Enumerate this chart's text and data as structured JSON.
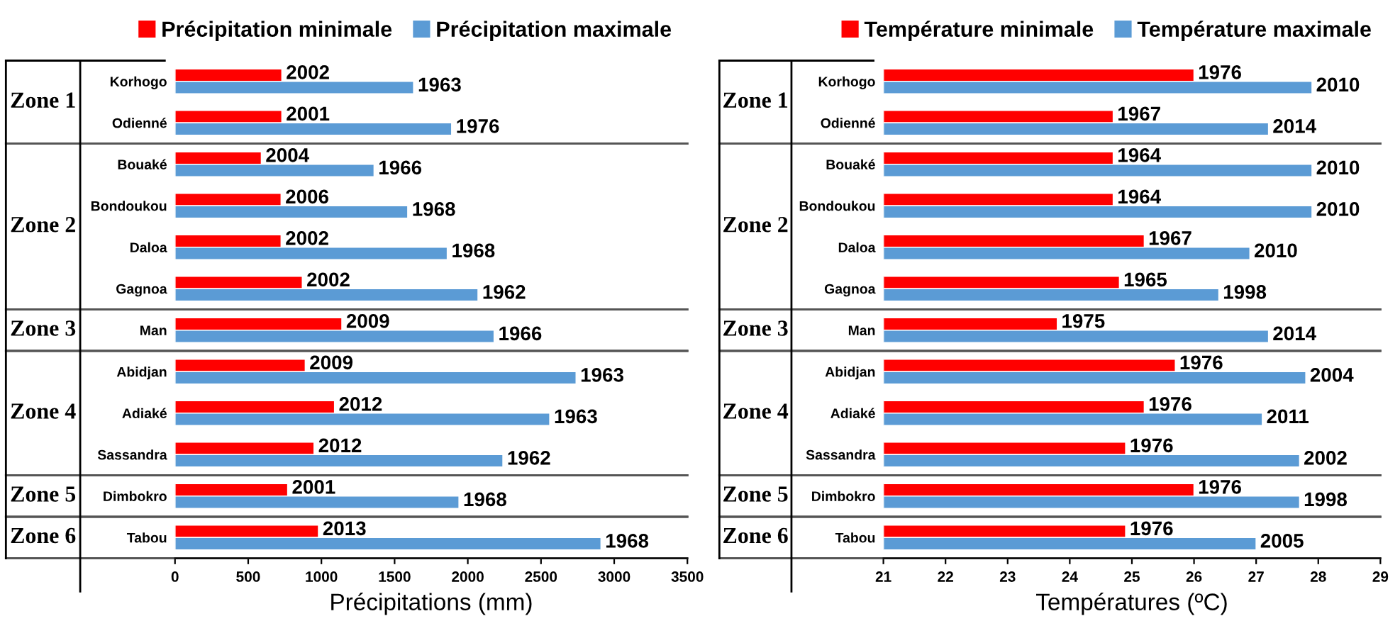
{
  "chart_data": [
    {
      "type": "bar",
      "orientation": "horizontal",
      "xlabel": "Précipitations (mm)",
      "categories": [
        "Korhogo",
        "Odienné",
        "Bouaké",
        "Bondoukou",
        "Daloa",
        "Gagnoa",
        "Man",
        "Abidjan",
        "Adiaké",
        "Sassandra",
        "Dimbokro",
        "Tabou"
      ],
      "series": [
        {
          "name": "Précipitation minimale",
          "color": "#ff0000",
          "values": [
            730,
            730,
            590,
            725,
            725,
            870,
            1140,
            890,
            1090,
            950,
            770,
            980
          ]
        },
        {
          "name": "Précipitation maximale",
          "color": "#5b9bd5",
          "values": [
            1630,
            1890,
            1360,
            1590,
            1860,
            2070,
            2180,
            2740,
            2560,
            2240,
            1940,
            2910
          ]
        }
      ],
      "xlim": [
        0,
        3500
      ],
      "xticks": [
        0,
        500,
        1000,
        1500,
        2000,
        2500,
        3000,
        3500
      ],
      "legend": "top",
      "grid": false,
      "annotations": [
        "Zone 1",
        "Zone 2",
        "Zone 3",
        "Zone 4",
        "Zone 5",
        "Zone 6",
        {
          "text": "2002",
          "x": 730,
          "y": "Korhogo"
        },
        {
          "text": "1963",
          "x": 1630,
          "y": "Korhogo"
        },
        {
          "text": "2001",
          "x": 730,
          "y": "Odienné"
        },
        {
          "text": "1976",
          "x": 1890,
          "y": "Odienné"
        },
        {
          "text": "2004",
          "x": 590,
          "y": "Bouaké"
        },
        {
          "text": "1966",
          "x": 1360,
          "y": "Bouaké"
        },
        {
          "text": "2006",
          "x": 725,
          "y": "Bondoukou"
        },
        {
          "text": "1968",
          "x": 1590,
          "y": "Bondoukou"
        },
        {
          "text": "2002",
          "x": 725,
          "y": "Daloa"
        },
        {
          "text": "1968",
          "x": 1860,
          "y": "Daloa"
        },
        {
          "text": "2002",
          "x": 870,
          "y": "Gagnoa"
        },
        {
          "text": "1962",
          "x": 2070,
          "y": "Gagnoa"
        },
        {
          "text": "2009",
          "x": 1140,
          "y": "Man"
        },
        {
          "text": "1966",
          "x": 2180,
          "y": "Man"
        },
        {
          "text": "2009",
          "x": 890,
          "y": "Abidjan"
        },
        {
          "text": "1963",
          "x": 2740,
          "y": "Abidjan"
        },
        {
          "text": "2012",
          "x": 1090,
          "y": "Adiaké"
        },
        {
          "text": "1963",
          "x": 2560,
          "y": "Adiaké"
        },
        {
          "text": "2012",
          "x": 950,
          "y": "Sassandra"
        },
        {
          "text": "1962",
          "x": 2240,
          "y": "Sassandra"
        },
        {
          "text": "2001",
          "x": 770,
          "y": "Dimbokro"
        },
        {
          "text": "1968",
          "x": 1940,
          "y": "Dimbokro"
        },
        {
          "text": "2013",
          "x": 980,
          "y": "Tabou"
        },
        {
          "text": "1968",
          "x": 2910,
          "y": "Tabou"
        }
      ]
    },
    {
      "type": "bar",
      "orientation": "horizontal",
      "xlabel": "Températures (ºC)",
      "categories": [
        "Korhogo",
        "Odienné",
        "Bouaké",
        "Bondoukou",
        "Daloa",
        "Gagnoa",
        "Man",
        "Abidjan",
        "Adiaké",
        "Sassandra",
        "Dimbokro",
        "Tabou"
      ],
      "series": [
        {
          "name": "Température minimale",
          "color": "#ff0000",
          "values": [
            26.0,
            24.7,
            24.7,
            24.7,
            25.2,
            24.8,
            23.8,
            25.7,
            25.2,
            24.9,
            26.0,
            24.9
          ]
        },
        {
          "name": "Température maximale",
          "color": "#5b9bd5",
          "values": [
            27.9,
            27.2,
            27.9,
            27.9,
            26.9,
            26.4,
            27.2,
            27.8,
            27.1,
            27.7,
            27.7,
            27.0
          ]
        }
      ],
      "xlim": [
        21,
        29
      ],
      "xticks": [
        21,
        22,
        23,
        24,
        25,
        26,
        27,
        28,
        29
      ],
      "legend": "top",
      "grid": false,
      "annotations": [
        "Zone 1",
        "Zone 2",
        "Zone 3",
        "Zone 4",
        "Zone 5",
        "Zone 6",
        {
          "text": "1976",
          "x": 26.0,
          "y": "Korhogo"
        },
        {
          "text": "2010",
          "x": 27.9,
          "y": "Korhogo"
        },
        {
          "text": "1967",
          "x": 24.7,
          "y": "Odienné"
        },
        {
          "text": "2014",
          "x": 27.2,
          "y": "Odienné"
        },
        {
          "text": "1964",
          "x": 24.7,
          "y": "Bouaké"
        },
        {
          "text": "2010",
          "x": 27.9,
          "y": "Bouaké"
        },
        {
          "text": "1964",
          "x": 24.7,
          "y": "Bondoukou"
        },
        {
          "text": "2010",
          "x": 27.9,
          "y": "Bondoukou"
        },
        {
          "text": "1967",
          "x": 25.2,
          "y": "Daloa"
        },
        {
          "text": "2010",
          "x": 26.9,
          "y": "Daloa"
        },
        {
          "text": "1965",
          "x": 24.8,
          "y": "Gagnoa"
        },
        {
          "text": "1998",
          "x": 26.4,
          "y": "Gagnoa"
        },
        {
          "text": "1975",
          "x": 23.8,
          "y": "Man"
        },
        {
          "text": "2014",
          "x": 27.2,
          "y": "Man"
        },
        {
          "text": "1976",
          "x": 25.7,
          "y": "Abidjan"
        },
        {
          "text": "2004",
          "x": 27.8,
          "y": "Abidjan"
        },
        {
          "text": "1976",
          "x": 25.2,
          "y": "Adiaké"
        },
        {
          "text": "2011",
          "x": 27.1,
          "y": "Adiaké"
        },
        {
          "text": "1976",
          "x": 24.9,
          "y": "Sassandra"
        },
        {
          "text": "2002",
          "x": 27.7,
          "y": "Sassandra"
        },
        {
          "text": "1976",
          "x": 26.0,
          "y": "Dimbokro"
        },
        {
          "text": "1998",
          "x": 27.7,
          "y": "Dimbokro"
        },
        {
          "text": "1976",
          "x": 24.9,
          "y": "Tabou"
        },
        {
          "text": "2005",
          "x": 27.0,
          "y": "Tabou"
        }
      ]
    }
  ]
}
